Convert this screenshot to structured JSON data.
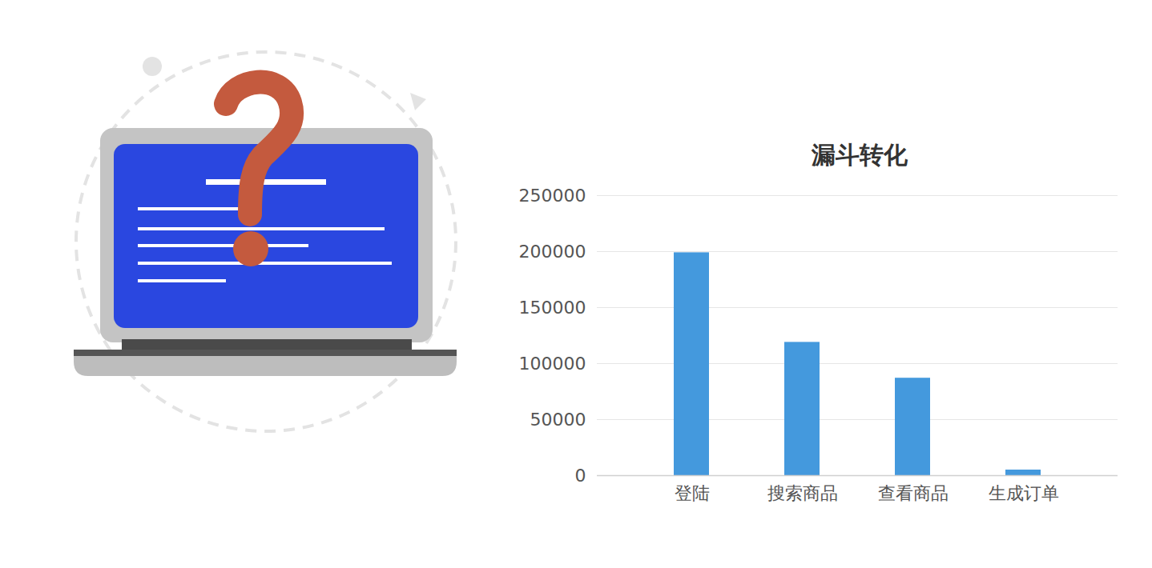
{
  "chart_data": {
    "type": "bar",
    "title": "漏斗转化",
    "categories": [
      "登陆",
      "搜索商品",
      "查看商品",
      "生成订单"
    ],
    "values": [
      199000,
      119000,
      87000,
      5000
    ],
    "color": "#4499dd",
    "ylim": [
      0,
      250000
    ],
    "yticks": [
      0,
      50000,
      100000,
      150000,
      200000,
      250000
    ],
    "grid": true
  }
}
